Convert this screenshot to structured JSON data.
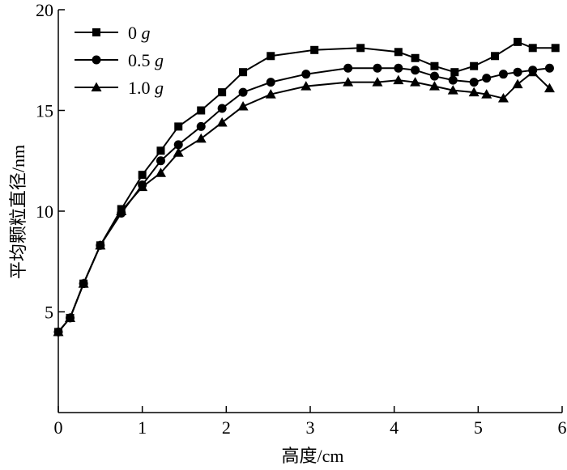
{
  "chart_data": {
    "type": "line",
    "title": "",
    "xlabel": "高度/cm",
    "ylabel": "平均颗粒直径/nm",
    "xlim": [
      0,
      6
    ],
    "ylim": [
      0,
      20
    ],
    "x_ticks": [
      0,
      1,
      2,
      3,
      4,
      5,
      6
    ],
    "y_ticks": [
      5,
      10,
      15,
      20
    ],
    "grid": false,
    "legend_position": "top-left",
    "series": [
      {
        "name": "0",
        "unit": "g",
        "marker": "square",
        "color": "#000000",
        "x": [
          0,
          0.14,
          0.3,
          0.5,
          0.75,
          1.0,
          1.22,
          1.43,
          1.7,
          1.95,
          2.2,
          2.53,
          3.05,
          3.6,
          4.05,
          4.25,
          4.48,
          4.72,
          4.95,
          5.2,
          5.47,
          5.65,
          5.92
        ],
        "y": [
          4.0,
          4.7,
          6.4,
          8.3,
          10.1,
          11.8,
          13.0,
          14.2,
          15.0,
          15.9,
          16.9,
          17.7,
          18.0,
          18.1,
          17.9,
          17.6,
          17.2,
          16.9,
          17.2,
          17.7,
          18.4,
          18.1,
          18.1
        ]
      },
      {
        "name": "0.5",
        "unit": "g",
        "marker": "circle",
        "color": "#000000",
        "x": [
          0,
          0.14,
          0.3,
          0.5,
          0.75,
          1.0,
          1.22,
          1.43,
          1.7,
          1.95,
          2.2,
          2.53,
          2.95,
          3.45,
          3.8,
          4.05,
          4.25,
          4.48,
          4.7,
          4.95,
          5.1,
          5.3,
          5.47,
          5.65,
          5.85
        ],
        "y": [
          4.0,
          4.7,
          6.4,
          8.3,
          9.9,
          11.3,
          12.5,
          13.3,
          14.2,
          15.1,
          15.9,
          16.4,
          16.8,
          17.1,
          17.1,
          17.1,
          17.0,
          16.7,
          16.5,
          16.4,
          16.6,
          16.8,
          16.9,
          17.0,
          17.1
        ]
      },
      {
        "name": "1.0",
        "unit": "g",
        "marker": "triangle",
        "color": "#000000",
        "x": [
          0,
          0.14,
          0.3,
          0.5,
          0.75,
          1.0,
          1.22,
          1.43,
          1.7,
          1.95,
          2.2,
          2.53,
          2.95,
          3.45,
          3.8,
          4.05,
          4.25,
          4.48,
          4.7,
          4.95,
          5.1,
          5.3,
          5.47,
          5.65,
          5.85
        ],
        "y": [
          4.0,
          4.7,
          6.4,
          8.3,
          10.0,
          11.2,
          11.9,
          12.9,
          13.6,
          14.4,
          15.2,
          15.8,
          16.2,
          16.4,
          16.4,
          16.5,
          16.4,
          16.2,
          16.0,
          15.9,
          15.8,
          15.6,
          16.3,
          16.9,
          16.1
        ]
      }
    ]
  }
}
